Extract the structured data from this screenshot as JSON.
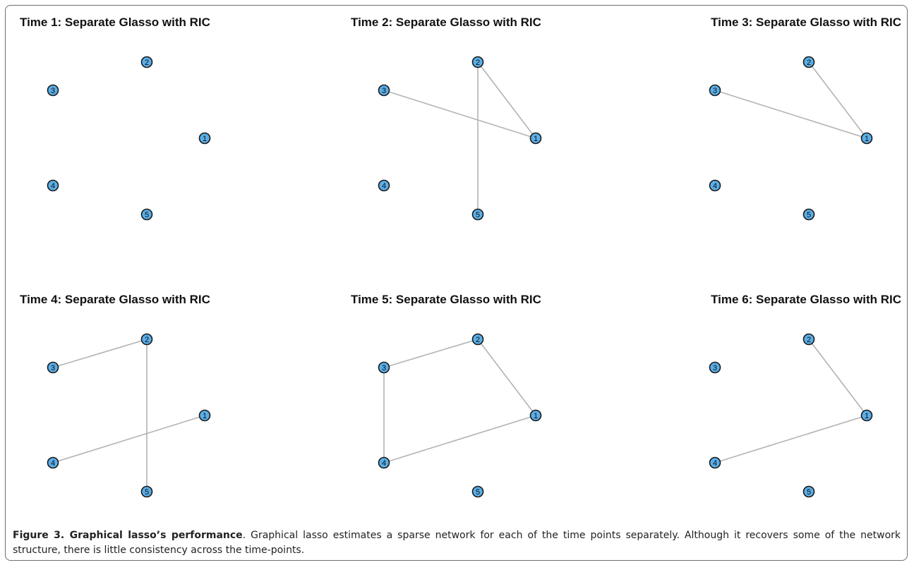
{
  "panels": [
    {
      "title": "Time 1: Separate Glasso with RIC",
      "nodes": [
        "1",
        "2",
        "3",
        "4",
        "5"
      ],
      "edges": []
    },
    {
      "title": "Time 2: Separate Glasso with RIC",
      "nodes": [
        "1",
        "2",
        "3",
        "4",
        "5"
      ],
      "edges": [
        [
          "3",
          "1"
        ],
        [
          "2",
          "1"
        ],
        [
          "2",
          "5"
        ]
      ]
    },
    {
      "title": "Time 3: Separate Glasso with RIC",
      "nodes": [
        "1",
        "2",
        "3",
        "4",
        "5"
      ],
      "edges": [
        [
          "3",
          "1"
        ],
        [
          "2",
          "1"
        ]
      ]
    },
    {
      "title": "Time 4: Separate Glasso with RIC",
      "nodes": [
        "1",
        "2",
        "3",
        "4",
        "5"
      ],
      "edges": [
        [
          "3",
          "2"
        ],
        [
          "2",
          "5"
        ],
        [
          "4",
          "1"
        ]
      ]
    },
    {
      "title": "Time 5: Separate Glasso with RIC",
      "nodes": [
        "1",
        "2",
        "3",
        "4",
        "5"
      ],
      "edges": [
        [
          "3",
          "2"
        ],
        [
          "2",
          "1"
        ],
        [
          "3",
          "4"
        ],
        [
          "4",
          "1"
        ]
      ]
    },
    {
      "title": "Time 6: Separate Glasso with RIC",
      "nodes": [
        "1",
        "2",
        "3",
        "4",
        "5"
      ],
      "edges": [
        [
          "2",
          "1"
        ],
        [
          "4",
          "1"
        ]
      ]
    }
  ],
  "caption": {
    "label": "Figure 3. Graphical lasso’s performance",
    "text": ". Graphical lasso estimates a sparse network for each of the time points separately. Although it recovers some of the network structure, there is little consistency across the time-points."
  },
  "colors": {
    "node_fill": "#5aaee8",
    "node_stroke": "#1a1a1a",
    "edge": "#b3b3b3"
  }
}
